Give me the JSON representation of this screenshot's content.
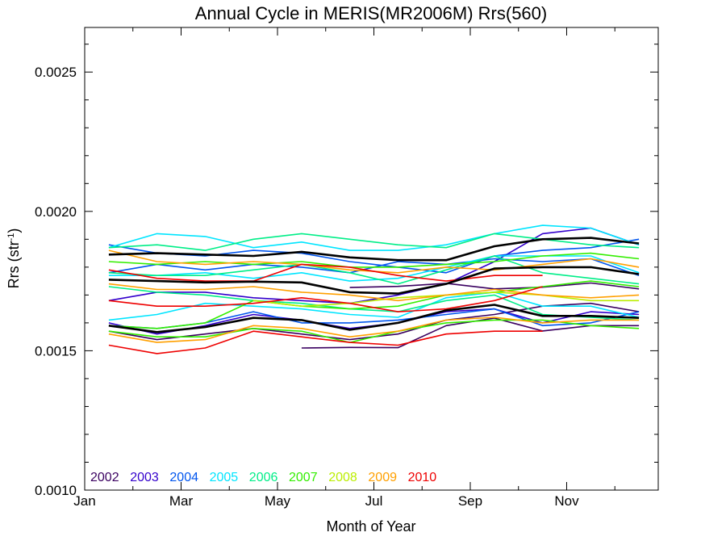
{
  "chart_data": {
    "type": "line",
    "title": "Annual Cycle in MERIS(MR2006M) Rrs(560)",
    "xlabel": "Month of Year",
    "ylabel_main": "Rrs (str",
    "ylabel_sup": "-1",
    "ylabel_close": ")",
    "xlim": [
      1,
      12.9
    ],
    "ylim": [
      0.001,
      0.00266
    ],
    "x_ticks": [
      {
        "value": 1,
        "label": "Jan"
      },
      {
        "value": 3,
        "label": "Mar"
      },
      {
        "value": 5,
        "label": "May"
      },
      {
        "value": 7,
        "label": "Jul"
      },
      {
        "value": 9,
        "label": "Sep"
      },
      {
        "value": 11,
        "label": "Nov"
      }
    ],
    "y_ticks": [
      {
        "value": 0.001,
        "label": "0.0010"
      },
      {
        "value": 0.0015,
        "label": "0.0015"
      },
      {
        "value": 0.002,
        "label": "0.0020"
      },
      {
        "value": 0.0025,
        "label": "0.0025"
      }
    ],
    "legend_position": "bottom-left",
    "legend": [
      {
        "name": "2002",
        "color": "#3a0060"
      },
      {
        "name": "2003",
        "color": "#3300cc"
      },
      {
        "name": "2004",
        "color": "#0055ee"
      },
      {
        "name": "2005",
        "color": "#00e5ff"
      },
      {
        "name": "2006",
        "color": "#00ee88"
      },
      {
        "name": "2007",
        "color": "#33ee00"
      },
      {
        "name": "2008",
        "color": "#bbee00"
      },
      {
        "name": "2009",
        "color": "#ffa000"
      },
      {
        "name": "2010",
        "color": "#ee0000"
      }
    ],
    "series": [
      {
        "color": "#3a0060",
        "x": [
          5.5,
          6.5,
          7.5,
          8.5,
          9.5,
          10.5,
          11.5,
          12.5
        ],
        "y": [
          0.00151,
          0.001512,
          0.001511,
          0.00159,
          0.001617,
          0.001571,
          0.00159,
          0.00159
        ]
      },
      {
        "color": "#3a0060",
        "x": [
          6.5,
          7.5,
          8.5,
          9.5,
          10.5,
          11.5,
          12.5
        ],
        "y": [
          0.001727,
          0.001731,
          0.001742,
          0.001722,
          0.001728,
          0.001743,
          0.001722
        ]
      },
      {
        "color": "#3a0060",
        "x": [
          1.5,
          2.5,
          3.5,
          4.5,
          5.5,
          6.5,
          7.5,
          8.5,
          9.5,
          10.5,
          11.5,
          12.5
        ],
        "y": [
          0.00157,
          0.00154,
          0.00156,
          0.00158,
          0.00156,
          0.00154,
          0.00156,
          0.00161,
          0.00163,
          0.00166,
          0.00167,
          0.00164
        ]
      },
      {
        "color": "#3300cc",
        "x": [
          1.5,
          2.5,
          3.5,
          4.5,
          5.5,
          6.5,
          7.5,
          8.5,
          9.5,
          10.5,
          11.5,
          12.5
        ],
        "y": [
          0.00168,
          0.00171,
          0.00171,
          0.00169,
          0.00168,
          0.00167,
          0.0017,
          0.00174,
          0.00182,
          0.00192,
          0.00194,
          0.00188
        ]
      },
      {
        "color": "#3300cc",
        "x": [
          1.5,
          2.5,
          3.5,
          4.5,
          5.5,
          6.5,
          7.5,
          8.5,
          9.5,
          10.5,
          11.5,
          12.5
        ],
        "y": [
          0.0016,
          0.00156,
          0.00159,
          0.00163,
          0.00161,
          0.00158,
          0.0016,
          0.00164,
          0.00165,
          0.0016,
          0.00164,
          0.00163
        ]
      },
      {
        "color": "#0055ee",
        "x": [
          1.5,
          2.5,
          3.5,
          4.5,
          5.5,
          6.5,
          7.5,
          8.5,
          9.5,
          10.5,
          11.5,
          12.5
        ],
        "y": [
          0.00178,
          0.00181,
          0.00179,
          0.00181,
          0.0018,
          0.00178,
          0.00182,
          0.00181,
          0.00183,
          0.00182,
          0.00183,
          0.00177
        ]
      },
      {
        "color": "#0055ee",
        "x": [
          1.5,
          2.5,
          3.5,
          4.5,
          5.5,
          6.5,
          7.5,
          8.5,
          9.5,
          10.5,
          11.5,
          12.5
        ],
        "y": [
          0.00188,
          0.00185,
          0.00184,
          0.00186,
          0.00185,
          0.00182,
          0.0018,
          0.00178,
          0.00184,
          0.00186,
          0.00187,
          0.0019
        ]
      },
      {
        "color": "#0055ee",
        "x": [
          1.5,
          2.5,
          3.5,
          4.5,
          5.5,
          6.5,
          7.5,
          8.5,
          9.5,
          10.5,
          11.5,
          12.5
        ],
        "y": [
          0.00159,
          0.00158,
          0.0016,
          0.00164,
          0.0016,
          0.0016,
          0.00161,
          0.00163,
          0.00165,
          0.00159,
          0.0016,
          0.00164
        ]
      },
      {
        "color": "#00e5ff",
        "x": [
          1.5,
          2.5,
          3.5,
          4.5,
          5.5,
          6.5,
          7.5,
          8.5,
          9.5,
          10.5,
          11.5,
          12.5
        ],
        "y": [
          0.00187,
          0.00192,
          0.00191,
          0.00187,
          0.00189,
          0.00186,
          0.00186,
          0.00188,
          0.00192,
          0.00195,
          0.00194,
          0.00188
        ]
      },
      {
        "color": "#00e5ff",
        "x": [
          1.5,
          2.5,
          3.5,
          4.5,
          5.5,
          6.5,
          7.5,
          8.5,
          9.5,
          10.5,
          11.5,
          12.5
        ],
        "y": [
          0.00177,
          0.00177,
          0.00178,
          0.00176,
          0.00178,
          0.00175,
          0.00176,
          0.0018,
          0.00184,
          0.00184,
          0.00184,
          0.00178
        ]
      },
      {
        "color": "#00e5ff",
        "x": [
          1.5,
          2.5,
          3.5,
          4.5,
          5.5,
          6.5,
          7.5,
          8.5,
          9.5,
          10.5,
          11.5,
          12.5
        ],
        "y": [
          0.00161,
          0.00163,
          0.00167,
          0.00166,
          0.00165,
          0.00163,
          0.00162,
          0.00169,
          0.00171,
          0.00166,
          0.00166,
          0.00162
        ]
      },
      {
        "color": "#00ee88",
        "x": [
          1.5,
          2.5,
          3.5,
          4.5,
          5.5,
          6.5,
          7.5,
          8.5,
          9.5,
          10.5,
          11.5,
          12.5
        ],
        "y": [
          0.00187,
          0.00188,
          0.00186,
          0.0019,
          0.00192,
          0.0019,
          0.00188,
          0.00187,
          0.00192,
          0.0019,
          0.00188,
          0.00187
        ]
      },
      {
        "color": "#00ee88",
        "x": [
          1.5,
          2.5,
          3.5,
          4.5,
          5.5,
          6.5,
          7.5,
          8.5,
          9.5,
          10.5,
          11.5,
          12.5
        ],
        "y": [
          0.00178,
          0.00177,
          0.00177,
          0.00179,
          0.00181,
          0.00178,
          0.00174,
          0.00179,
          0.00184,
          0.00178,
          0.00176,
          0.00174
        ]
      },
      {
        "color": "#00ee88",
        "x": [
          1.5,
          2.5,
          3.5,
          4.5,
          5.5,
          6.5,
          7.5,
          8.5,
          9.5,
          10.5,
          11.5,
          12.5
        ],
        "y": [
          0.00173,
          0.00171,
          0.0017,
          0.00168,
          0.00167,
          0.00165,
          0.00164,
          0.00168,
          0.0017,
          0.00163,
          0.00162,
          0.00161
        ]
      },
      {
        "color": "#33ee00",
        "x": [
          1.5,
          2.5,
          3.5,
          4.5,
          5.5,
          6.5,
          7.5,
          8.5,
          9.5,
          10.5,
          11.5,
          12.5
        ],
        "y": [
          0.00182,
          0.00181,
          0.00182,
          0.00181,
          0.00182,
          0.0018,
          0.0018,
          0.00181,
          0.00182,
          0.00184,
          0.00185,
          0.00183
        ]
      },
      {
        "color": "#33ee00",
        "x": [
          1.5,
          2.5,
          3.5,
          4.5,
          5.5,
          6.5,
          7.5,
          8.5,
          9.5,
          10.5,
          11.5,
          12.5
        ],
        "y": [
          0.00159,
          0.00158,
          0.0016,
          0.00168,
          0.00166,
          0.00165,
          0.00166,
          0.0017,
          0.00171,
          0.00173,
          0.00175,
          0.00173
        ]
      },
      {
        "color": "#33ee00",
        "x": [
          1.5,
          2.5,
          3.5,
          4.5,
          5.5,
          6.5,
          7.5,
          8.5,
          9.5,
          10.5,
          11.5,
          12.5
        ],
        "y": [
          0.00157,
          0.00155,
          0.00155,
          0.00158,
          0.00157,
          0.00153,
          0.00157,
          0.0016,
          0.00161,
          0.00161,
          0.00159,
          0.00158
        ]
      },
      {
        "color": "#bbee00",
        "x": [
          4.5,
          5.5,
          6.5,
          7.5,
          8.5,
          9.5,
          10.5,
          11.5,
          12.5
        ],
        "y": [
          0.00168,
          0.00166,
          0.00167,
          0.00169,
          0.0017,
          0.00171,
          0.0017,
          0.00168,
          0.00168
        ]
      },
      {
        "color": "#ffa000",
        "x": [
          1.5,
          2.5,
          3.5,
          4.5,
          5.5,
          6.5,
          7.5,
          8.5,
          9.5,
          10.5,
          11.5,
          12.5
        ],
        "y": [
          0.00186,
          0.00182,
          0.00181,
          0.00182,
          0.00181,
          0.00179,
          0.00178,
          0.0018,
          0.00179,
          0.00181,
          0.00183,
          0.0018
        ]
      },
      {
        "color": "#ffa000",
        "x": [
          1.5,
          2.5,
          3.5,
          4.5,
          5.5,
          6.5,
          7.5,
          8.5,
          9.5,
          10.5,
          11.5,
          12.5
        ],
        "y": [
          0.00174,
          0.00172,
          0.00172,
          0.00173,
          0.00171,
          0.0017,
          0.00168,
          0.0017,
          0.00172,
          0.0017,
          0.00169,
          0.0017
        ]
      },
      {
        "color": "#ffa000",
        "x": [
          1.5,
          2.5,
          3.5,
          4.5,
          5.5,
          6.5,
          7.5,
          8.5,
          9.5,
          10.5,
          11.5,
          12.5
        ],
        "y": [
          0.00156,
          0.00153,
          0.00154,
          0.00159,
          0.00158,
          0.00155,
          0.00157,
          0.00161,
          0.00162,
          0.0016,
          0.00161,
          0.00161
        ]
      },
      {
        "color": "#ee0000",
        "x": [
          1.5,
          2.5,
          3.5,
          4.5,
          5.5,
          6.5,
          7.5,
          8.5,
          9.5,
          10.5
        ],
        "y": [
          0.00179,
          0.00176,
          0.00175,
          0.00175,
          0.00181,
          0.0018,
          0.00177,
          0.00175,
          0.00177,
          0.00177
        ]
      },
      {
        "color": "#ee0000",
        "x": [
          1.5,
          2.5,
          3.5,
          4.5,
          5.5,
          6.5,
          7.5,
          8.5,
          9.5,
          10.5
        ],
        "y": [
          0.00168,
          0.00166,
          0.00166,
          0.00167,
          0.00169,
          0.00167,
          0.00164,
          0.00165,
          0.00168,
          0.00173
        ]
      },
      {
        "color": "#ee0000",
        "x": [
          1.5,
          2.5,
          3.5,
          4.5,
          5.5,
          6.5,
          7.5,
          8.5,
          9.5,
          10.5
        ],
        "y": [
          0.00152,
          0.00149,
          0.00151,
          0.00157,
          0.00155,
          0.00153,
          0.00152,
          0.00156,
          0.00157,
          0.00157
        ]
      },
      {
        "color": "#000000",
        "mean": true,
        "x": [
          1.5,
          2.5,
          3.5,
          4.5,
          5.5,
          6.5,
          7.5,
          8.5,
          9.5,
          10.5,
          11.5,
          12.5
        ],
        "y": [
          0.001845,
          0.00185,
          0.001845,
          0.00184,
          0.001855,
          0.001835,
          0.001825,
          0.001825,
          0.001875,
          0.0019,
          0.001905,
          0.001885
        ]
      },
      {
        "color": "#000000",
        "mean": true,
        "x": [
          1.5,
          2.5,
          3.5,
          4.5,
          5.5,
          6.5,
          7.5,
          8.5,
          9.5,
          10.5,
          11.5,
          12.5
        ],
        "y": [
          0.001755,
          0.00175,
          0.001745,
          0.001748,
          0.001745,
          0.00171,
          0.001705,
          0.00174,
          0.001795,
          0.0018,
          0.0018,
          0.001775
        ]
      },
      {
        "color": "#000000",
        "mean": true,
        "x": [
          1.5,
          2.5,
          3.5,
          4.5,
          5.5,
          6.5,
          7.5,
          8.5,
          9.5,
          10.5,
          11.5,
          12.5
        ],
        "y": [
          0.00159,
          0.001567,
          0.001585,
          0.001618,
          0.00161,
          0.001575,
          0.0016,
          0.001645,
          0.001665,
          0.001625,
          0.001625,
          0.001618
        ]
      }
    ]
  }
}
